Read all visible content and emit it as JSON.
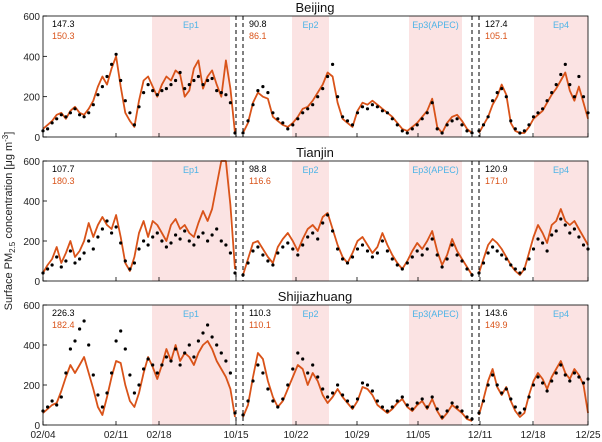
{
  "figure": {
    "ylabel_main": "Surface PM",
    "ylabel_sub": "2.5",
    "ylabel_tail": " concentration [μg m",
    "ylabel_sup": "-3",
    "ylabel_close": "]"
  },
  "colors": {
    "observed": "#000000",
    "modeled": "#d95319",
    "episode_fill": "#fbe3e3",
    "episode_label": "#4db3e6",
    "axis": "#000000"
  },
  "chart_data": [
    {
      "type": "line",
      "title": "Beijing",
      "ylim": [
        0,
        600
      ],
      "yticks": [
        "0",
        "200",
        "400",
        "600"
      ],
      "xticks": [
        "02/04",
        "02/11",
        "02/18",
        "10/15",
        "10/22",
        "10/29",
        "11/05",
        "12/11",
        "12/18",
        "12/25"
      ],
      "episodes": [
        "Ep1",
        "Ep2",
        "Ep3(APEC)",
        "Ep4"
      ],
      "segment_stats": [
        {
          "obs": "147.3",
          "mod": "150.3"
        },
        {
          "obs": "90.8",
          "mod": "86.1"
        },
        {
          "obs": "127.4",
          "mod": "105.1"
        }
      ],
      "series": [
        {
          "role": "observed",
          "segments": [
            [
              30,
              40,
              70,
              90,
              110,
              100,
              120,
              140,
              110,
              100,
              120,
              160,
              210,
              250,
              300,
              360,
              410,
              280,
              180,
              120,
              60,
              150,
              220,
              260,
              230,
              210,
              230,
              240,
              260,
              280,
              320,
              240,
              260,
              280,
              300,
              260,
              280,
              290,
              230,
              220,
              210,
              170,
              20
            ],
            [
              20,
              80,
              160,
              230,
              250,
              220,
              120,
              90,
              70,
              40,
              60,
              90,
              120,
              140,
              160,
              200,
              240,
              300,
              360,
              200,
              100,
              80,
              60,
              120,
              150,
              140,
              160,
              150,
              130,
              120,
              90,
              60,
              30,
              20,
              40,
              60,
              90,
              120,
              170,
              40,
              20,
              60,
              80,
              90,
              60,
              30,
              20
            ],
            [
              30,
              60,
              100,
              180,
              220,
              240,
              200,
              80,
              40,
              20,
              30,
              60,
              100,
              120,
              140,
              180,
              220,
              260,
              310,
              360,
              260,
              200,
              300,
              200,
              120
            ]
          ]
        },
        {
          "role": "modeled",
          "segments": [
            [
              40,
              60,
              80,
              110,
              120,
              90,
              130,
              150,
              120,
              110,
              140,
              180,
              250,
              300,
              260,
              340,
              400,
              250,
              120,
              80,
              50,
              180,
              280,
              300,
              250,
              200,
              260,
              300,
              280,
              330,
              310,
              200,
              230,
              340,
              380,
              240,
              300,
              330,
              260,
              200,
              380,
              240,
              20
            ],
            [
              20,
              70,
              170,
              220,
              200,
              190,
              100,
              80,
              60,
              50,
              70,
              100,
              140,
              150,
              180,
              220,
              260,
              320,
              300,
              170,
              90,
              70,
              50,
              130,
              170,
              160,
              180,
              160,
              140,
              120,
              100,
              70,
              40,
              30,
              50,
              70,
              100,
              130,
              190,
              50,
              20,
              70,
              100,
              110,
              80,
              40,
              20
            ],
            [
              20,
              60,
              100,
              160,
              200,
              260,
              210,
              70,
              30,
              20,
              20,
              50,
              90,
              110,
              130,
              170,
              210,
              240,
              280,
              320,
              230,
              180,
              250,
              170,
              90
            ]
          ]
        }
      ]
    },
    {
      "type": "line",
      "title": "Tianjin",
      "ylim": [
        0,
        600
      ],
      "yticks": [
        "0",
        "200",
        "400",
        "600"
      ],
      "xticks": [
        "02/04",
        "02/11",
        "02/18",
        "10/15",
        "10/22",
        "10/29",
        "11/05",
        "12/11",
        "12/18",
        "12/25"
      ],
      "episodes": [
        "Ep1",
        "Ep2",
        "Ep3(APEC)",
        "Ep4"
      ],
      "segment_stats": [
        {
          "obs": "107.7",
          "mod": "180.3"
        },
        {
          "obs": "98.8",
          "mod": "116.6"
        },
        {
          "obs": "120.9",
          "mod": "171.0"
        }
      ],
      "series": [
        {
          "role": "observed",
          "segments": [
            [
              40,
              60,
              80,
              120,
              70,
              100,
              150,
              90,
              110,
              140,
              200,
              160,
              220,
              260,
              300,
              240,
              270,
              190,
              100,
              60,
              90,
              160,
              200,
              180,
              220,
              240,
              200,
              170,
              190,
              230,
              210,
              250,
              200,
              180,
              220,
              240,
              200,
              230,
              260,
              200,
              180,
              140,
              40
            ],
            [
              30,
              90,
              150,
              170,
              130,
              100,
              80,
              140,
              170,
              190,
              160,
              130,
              180,
              220,
              240,
              210,
              290,
              330,
              250,
              160,
              110,
              90,
              120,
              160,
              180,
              150,
              120,
              140,
              200,
              150,
              110,
              80,
              60,
              90,
              120,
              150,
              130,
              160,
              210,
              130,
              70,
              110,
              180,
              130,
              100,
              60,
              30
            ],
            [
              40,
              90,
              140,
              170,
              150,
              130,
              110,
              80,
              60,
              40,
              60,
              110,
              160,
              210,
              190,
              150,
              230,
              250,
              310,
              280,
              240,
              260,
              220,
              180,
              160
            ]
          ]
        },
        {
          "role": "modeled",
          "segments": [
            [
              40,
              80,
              110,
              170,
              90,
              140,
              200,
              120,
              150,
              200,
              290,
              220,
              280,
              320,
              280,
              260,
              330,
              220,
              90,
              50,
              120,
              240,
              300,
              220,
              300,
              280,
              240,
              200,
              280,
              310,
              260,
              280,
              240,
              220,
              290,
              350,
              300,
              360,
              480,
              600,
              650,
              380,
              60
            ],
            [
              30,
              110,
              190,
              200,
              160,
              120,
              90,
              170,
              210,
              240,
              200,
              150,
              210,
              260,
              280,
              250,
              320,
              340,
              260,
              180,
              120,
              90,
              140,
              200,
              220,
              180,
              140,
              170,
              240,
              180,
              130,
              90,
              60,
              100,
              150,
              190,
              160,
              200,
              250,
              150,
              80,
              130,
              210,
              150,
              110,
              70,
              30
            ],
            [
              40,
              110,
              180,
              210,
              190,
              160,
              120,
              80,
              50,
              30,
              60,
              140,
              220,
              280,
              240,
              190,
              280,
              300,
              360,
              300,
              280,
              300,
              260,
              220,
              180
            ]
          ]
        }
      ]
    },
    {
      "type": "line",
      "title": "Shijiazhuang",
      "ylim": [
        0,
        600
      ],
      "yticks": [
        "0",
        "200",
        "400",
        "600"
      ],
      "xticks": [
        "02/04",
        "02/11",
        "02/18",
        "10/15",
        "10/22",
        "10/29",
        "11/05",
        "12/11",
        "12/18",
        "12/25"
      ],
      "episodes": [
        "Ep1",
        "Ep2",
        "Ep3(APEC)",
        "Ep4"
      ],
      "segment_stats": [
        {
          "obs": "226.3",
          "mod": "182.4"
        },
        {
          "obs": "110.3",
          "mod": "110.1"
        },
        {
          "obs": "143.6",
          "mod": "149.9"
        }
      ],
      "series": [
        {
          "role": "observed",
          "segments": [
            [
              70,
              90,
              120,
              100,
              140,
              260,
              380,
              420,
              480,
              520,
              400,
              250,
              150,
              90,
              160,
              260,
              420,
              470,
              380,
              250,
              160,
              200,
              280,
              330,
              300,
              260,
              300,
              340,
              320,
              380,
              300,
              360,
              400,
              340,
              420,
              460,
              500,
              440,
              400,
              360,
              320,
              260,
              60
            ],
            [
              50,
              120,
              220,
              300,
              260,
              180,
              120,
              90,
              130,
              200,
              280,
              360,
              330,
              260,
              300,
              240,
              180,
              140,
              160,
              200,
              150,
              120,
              90,
              130,
              210,
              200,
              170,
              120,
              90,
              70,
              90,
              120,
              140,
              100,
              80,
              110,
              130,
              90,
              140,
              80,
              40,
              70,
              110,
              90,
              70,
              40,
              30
            ],
            [
              60,
              120,
              200,
              250,
              200,
              160,
              180,
              130,
              90,
              60,
              80,
              140,
              200,
              240,
              210,
              170,
              220,
              260,
              300,
              250,
              220,
              260,
              240,
              210,
              230
            ]
          ]
        },
        {
          "role": "modeled",
          "segments": [
            [
              60,
              80,
              100,
              110,
              170,
              240,
              300,
              260,
              300,
              340,
              260,
              180,
              90,
              50,
              140,
              240,
              320,
              310,
              200,
              120,
              90,
              160,
              260,
              340,
              290,
              230,
              300,
              380,
              320,
              400,
              320,
              360,
              340,
              300,
              360,
              400,
              420,
              380,
              320,
              280,
              240,
              180,
              40
            ],
            [
              40,
              100,
              240,
              360,
              330,
              220,
              140,
              90,
              120,
              180,
              240,
              300,
              280,
              200,
              260,
              220,
              150,
              110,
              140,
              180,
              140,
              110,
              80,
              120,
              190,
              180,
              150,
              100,
              80,
              60,
              80,
              110,
              130,
              90,
              70,
              100,
              120,
              80,
              130,
              70,
              30,
              60,
              100,
              80,
              60,
              30,
              20
            ],
            [
              50,
              130,
              220,
              280,
              190,
              150,
              190,
              120,
              70,
              40,
              60,
              150,
              220,
              260,
              230,
              180,
              240,
              280,
              320,
              260,
              230,
              280,
              250,
              200,
              60
            ]
          ]
        }
      ]
    }
  ]
}
